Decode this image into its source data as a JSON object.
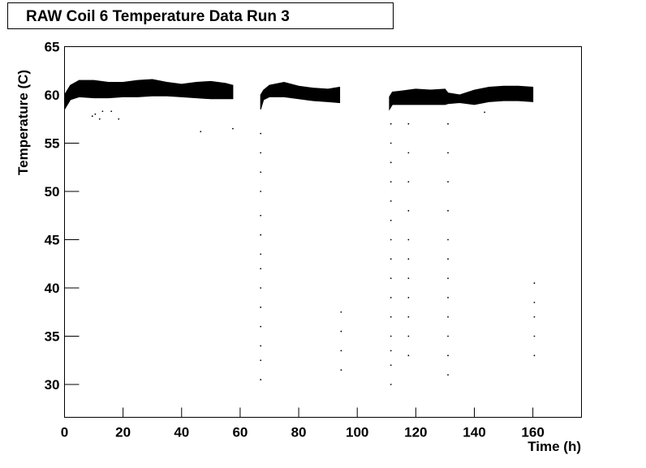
{
  "chart_data": {
    "type": "band-scatter",
    "title": "RAW Coil 6 Temperature Data Run 3",
    "xlabel": "Time (h)",
    "ylabel": "Temperature (C)",
    "xlim": [
      0,
      176.6
    ],
    "ylim": [
      26.6,
      65
    ],
    "xticks": [
      0,
      20,
      40,
      60,
      80,
      100,
      120,
      140,
      160
    ],
    "yticks": [
      30,
      35,
      40,
      45,
      50,
      55,
      60,
      65
    ],
    "color": "#000000",
    "band": {
      "x": [
        0,
        2,
        5,
        10,
        15,
        20,
        25,
        30,
        35,
        40,
        45,
        50,
        55,
        57.5,
        62,
        67,
        68,
        70,
        75,
        80,
        85,
        90,
        94,
        100,
        111,
        112,
        115,
        120,
        125,
        130,
        131,
        135,
        140,
        145,
        150,
        155,
        160
      ],
      "low": [
        58.5,
        59.5,
        59.8,
        59.7,
        59.7,
        59.8,
        59.8,
        59.9,
        59.9,
        59.8,
        59.7,
        59.6,
        59.6,
        59.6,
        null,
        58.5,
        59.5,
        59.8,
        59.8,
        59.6,
        59.4,
        59.3,
        59.2,
        null,
        58.5,
        59,
        59,
        59,
        59,
        59,
        59.1,
        59.2,
        59,
        59.3,
        59.4,
        59.4,
        59.3
      ],
      "high": [
        60,
        61,
        61.5,
        61.5,
        61.3,
        61.3,
        61.5,
        61.6,
        61.3,
        61.1,
        61.3,
        61.4,
        61.2,
        61,
        null,
        60,
        60.5,
        61,
        61.3,
        60.9,
        60.7,
        60.6,
        60.8,
        null,
        59.8,
        60.3,
        60.4,
        60.6,
        60.5,
        60.6,
        60.2,
        60,
        60.5,
        60.8,
        60.9,
        60.9,
        60.8
      ]
    },
    "points": {
      "x": [
        9.5,
        10.5,
        12,
        13,
        16,
        18.5,
        46.5,
        57.5,
        143.5,
        67,
        67,
        67,
        67,
        67,
        67,
        67,
        67,
        67,
        67,
        67,
        67,
        67,
        67,
        94.5,
        94.5,
        94.5,
        94.5,
        111.5,
        111.5,
        111.5,
        111.5,
        111.5,
        111.5,
        111.5,
        111.5,
        111.5,
        111.5,
        111.5,
        111.5,
        111.5,
        111.5,
        111.5,
        117.5,
        117.5,
        117.5,
        117.5,
        117.5,
        117.5,
        117.5,
        117.5,
        117.5,
        117.5,
        117.5,
        131,
        131,
        131,
        131,
        131,
        131,
        131,
        131,
        131,
        131,
        131,
        131,
        160.5,
        160.5,
        160.5,
        160.5,
        160.5
      ],
      "y": [
        57.8,
        58,
        57.5,
        58.3,
        58.3,
        57.5,
        56.2,
        56.5,
        58.2,
        30.5,
        32.5,
        34,
        36,
        38,
        40,
        42,
        43.5,
        45.5,
        47.5,
        50,
        52,
        54,
        56,
        31.5,
        33.5,
        35.5,
        37.5,
        30,
        32,
        33.5,
        35,
        37,
        39,
        41,
        43,
        45,
        47,
        49,
        51,
        53,
        55,
        57,
        33,
        35,
        37,
        39,
        41,
        43,
        45,
        48,
        51,
        54,
        57,
        31,
        33,
        35,
        37,
        39,
        41,
        43,
        45,
        48,
        51,
        54,
        57,
        33,
        35,
        37,
        38.5,
        40.5
      ]
    }
  }
}
